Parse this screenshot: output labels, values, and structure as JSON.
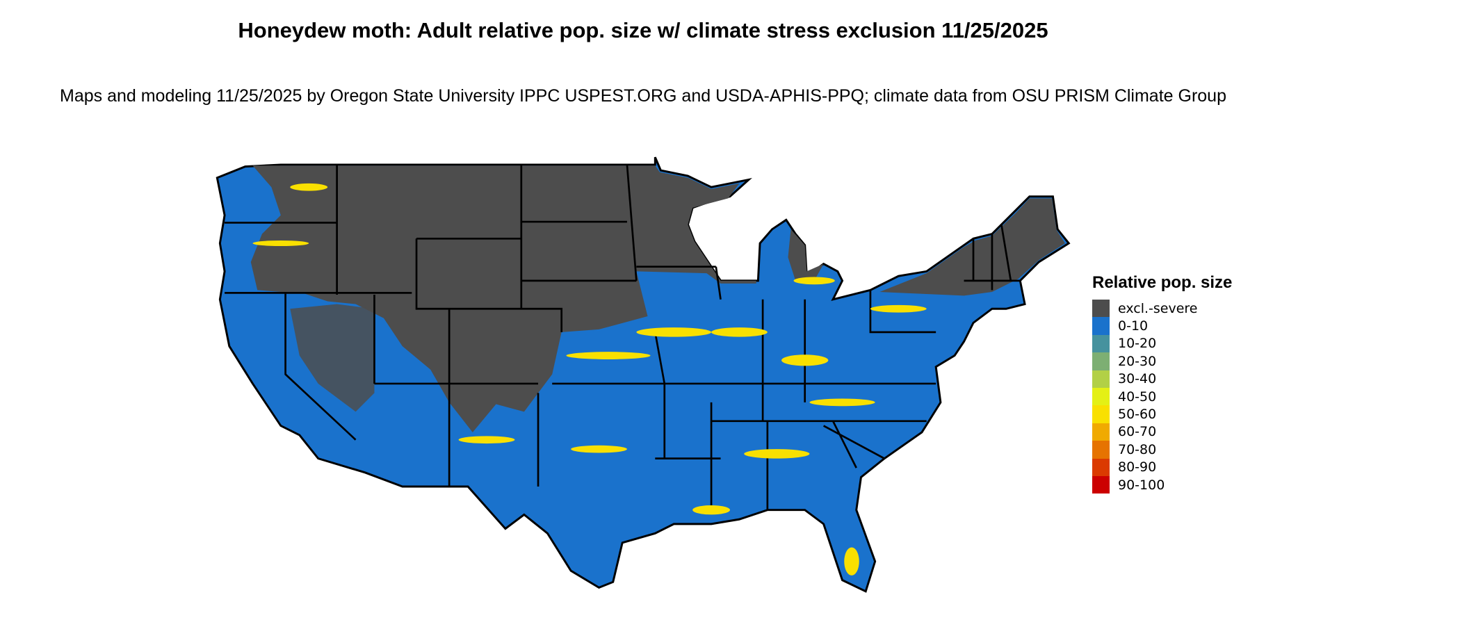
{
  "title": "Honeydew moth: Adult relative pop. size w/ climate stress exclusion 11/25/2025",
  "subtitle": "Maps and modeling 11/25/2025 by Oregon State University IPPC USPEST.ORG and USDA-APHIS-PPQ; climate data from OSU PRISM Climate Group",
  "map": {
    "region": "Contiguous United States",
    "border_color": "#000000"
  },
  "legend": {
    "title": "Relative pop. size",
    "items": [
      {
        "label": "excl.-severe",
        "color": "#4d4d4d"
      },
      {
        "label": "0-10",
        "color": "#1a72cc"
      },
      {
        "label": "10-20",
        "color": "#46929e"
      },
      {
        "label": "20-30",
        "color": "#7daf73"
      },
      {
        "label": "30-40",
        "color": "#b2d046"
      },
      {
        "label": "40-50",
        "color": "#e4f015"
      },
      {
        "label": "50-60",
        "color": "#f9e000"
      },
      {
        "label": "60-70",
        "color": "#f0aa00"
      },
      {
        "label": "70-80",
        "color": "#e67300"
      },
      {
        "label": "80-90",
        "color": "#db3a00"
      },
      {
        "label": "90-100",
        "color": "#cc0000"
      }
    ]
  }
}
